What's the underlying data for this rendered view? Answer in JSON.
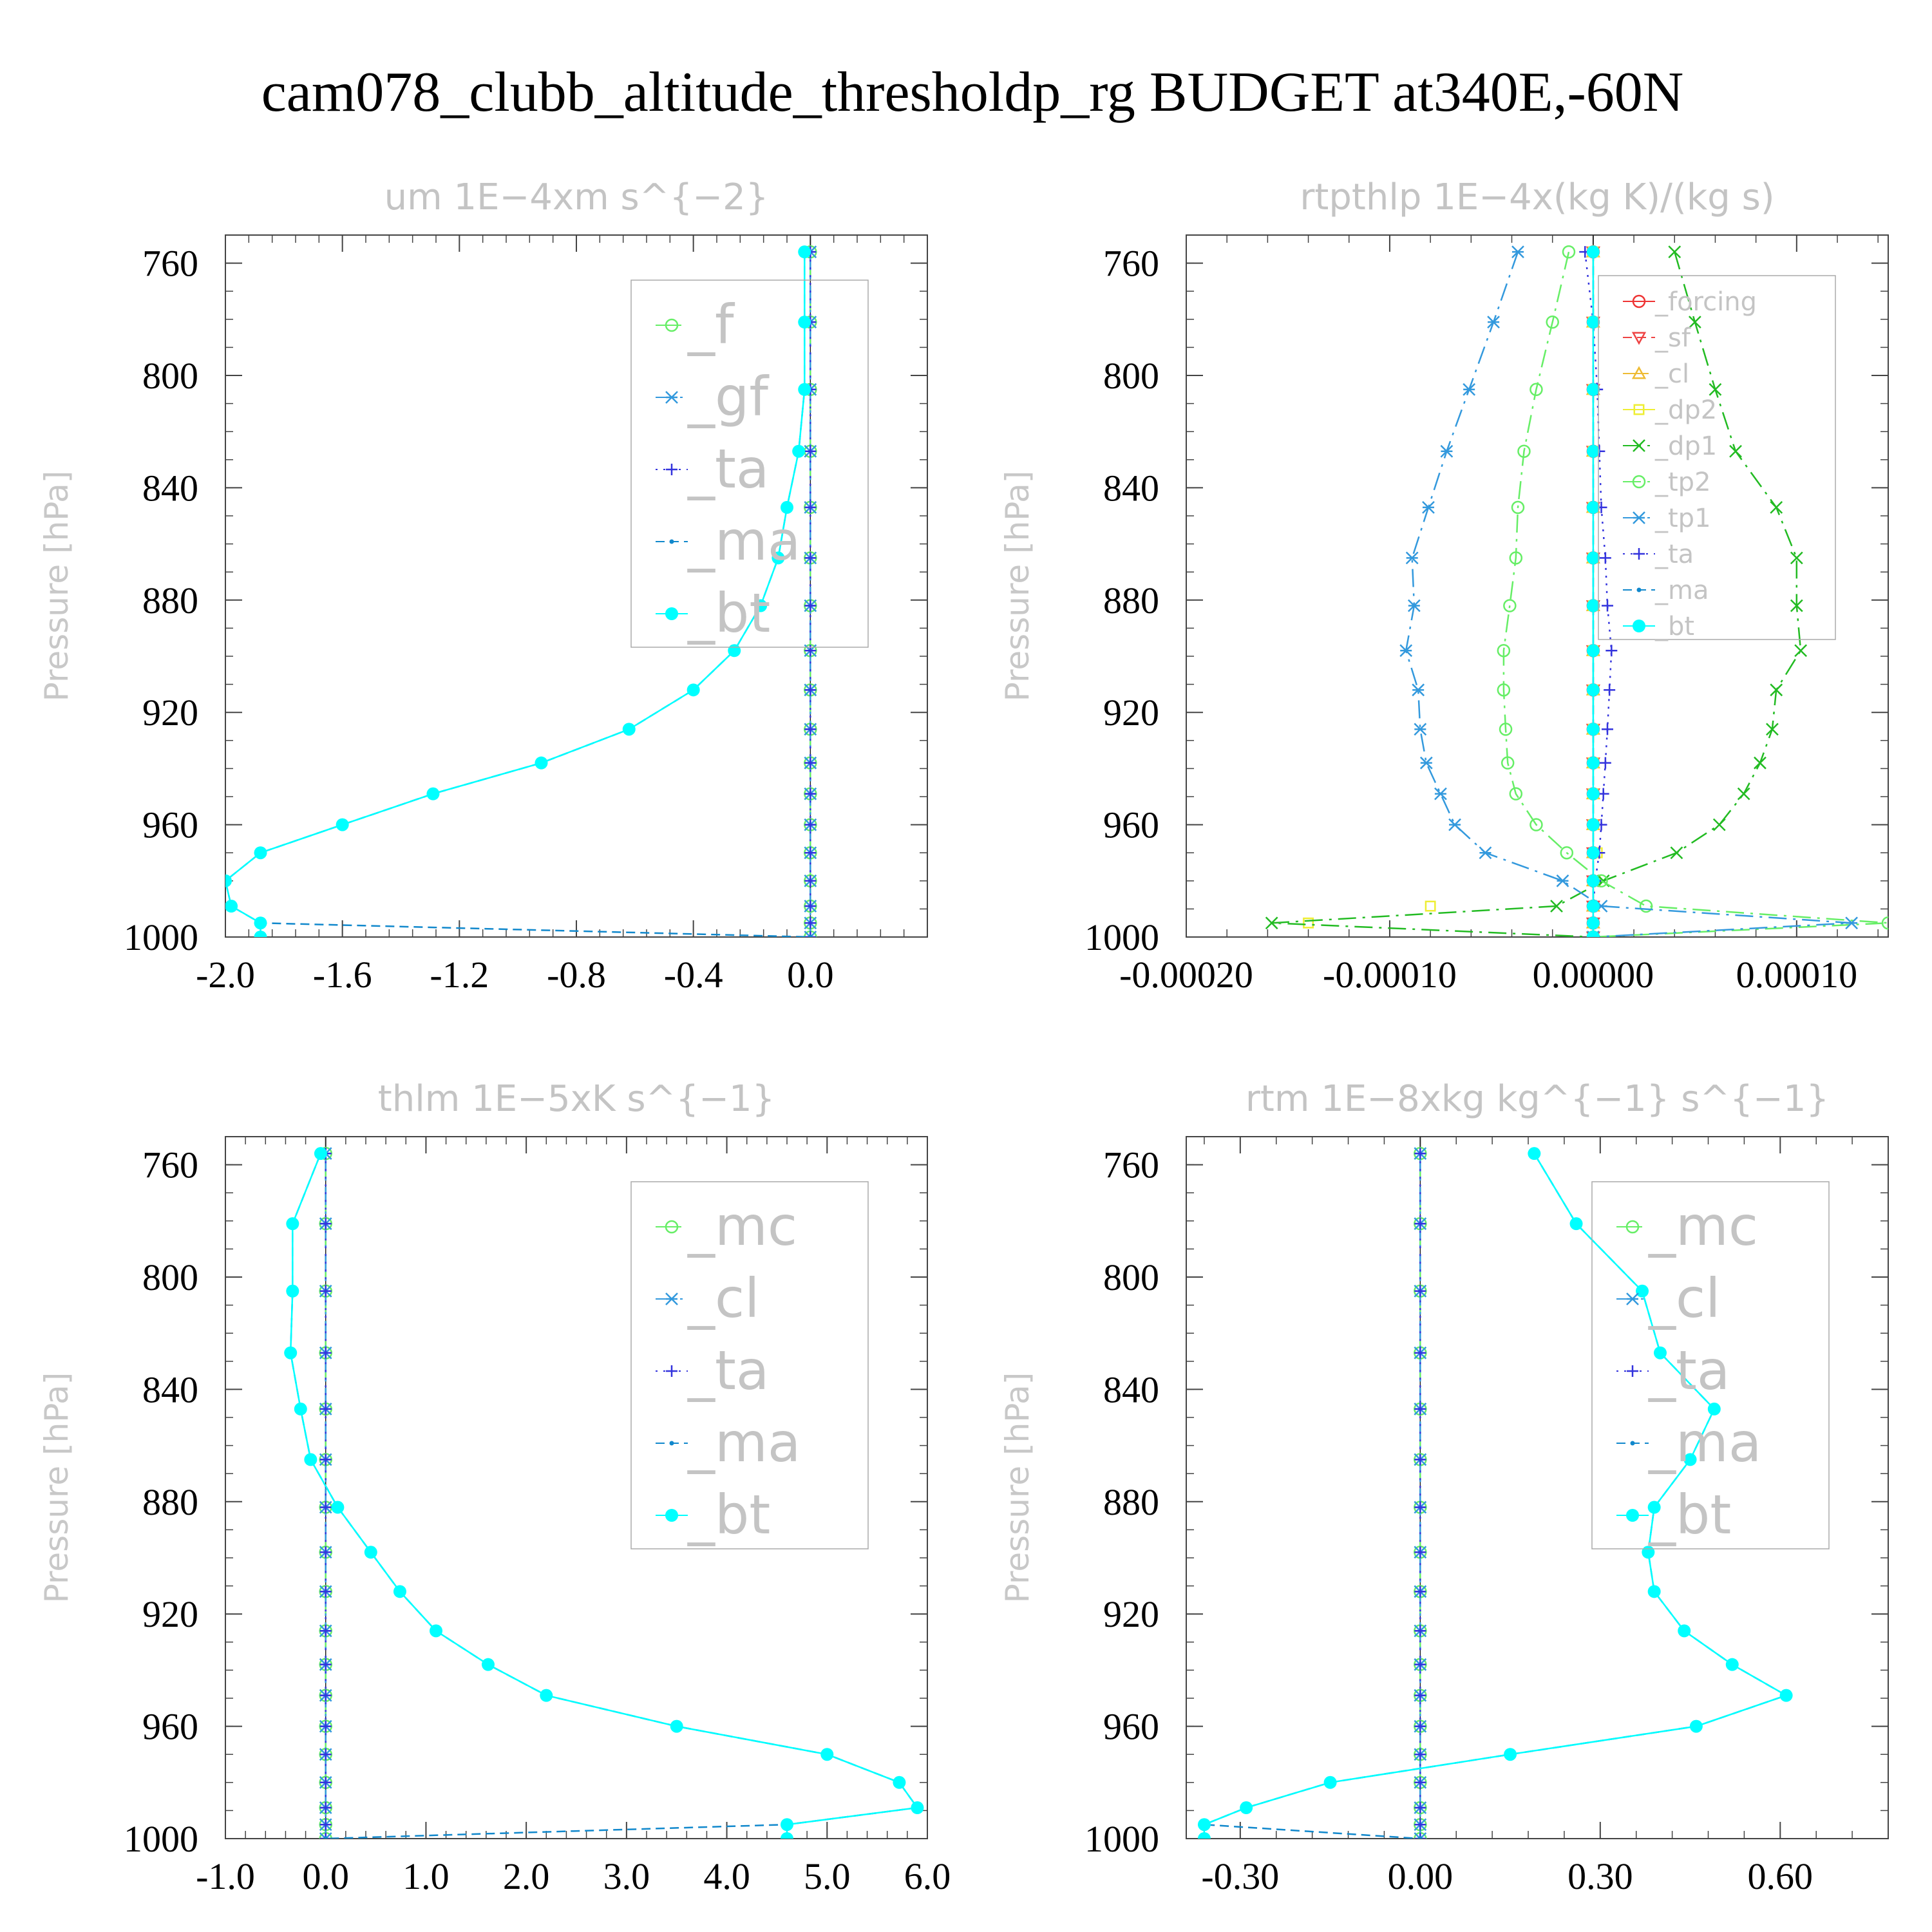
{
  "title": "cam078_clubb_altitude_thresholdp_rg  BUDGET at340E,-60N",
  "chart_data": [
    {
      "type": "line",
      "title": "um   1E−4xm s^{−2}",
      "ylabel": "Pressure [hPa]",
      "xlabel": "",
      "ylim": [
        1000,
        750
      ],
      "xlim": [
        -2.0,
        0.4
      ],
      "xticks": [
        -2.0,
        -1.6,
        -1.2,
        -0.8,
        -0.4,
        0.0
      ],
      "xtick_labels": [
        "-2.0",
        "-1.6",
        "-1.2",
        "-0.8",
        "-0.4",
        "0.0"
      ],
      "yticks": [
        760,
        800,
        840,
        880,
        920,
        960,
        1000
      ],
      "ytick_labels": [
        "760",
        "800",
        "840",
        "880",
        "920",
        "960",
        "1000"
      ],
      "legend_position": "top-right",
      "legend_size": "big",
      "levels": [
        756,
        781,
        805,
        827,
        847,
        865,
        882,
        898,
        912,
        926,
        938,
        949,
        960,
        970,
        980,
        989,
        995,
        1000
      ],
      "series": [
        {
          "name": "_f",
          "color": "#66ee66",
          "marker": "circle",
          "dash": "long",
          "values": [
            0,
            0,
            0,
            0,
            0,
            0,
            0,
            0,
            0,
            0,
            0,
            0,
            0,
            0,
            0,
            0,
            0,
            0
          ]
        },
        {
          "name": "_gf",
          "color": "#3399dd",
          "marker": "star",
          "dash": "dashdot",
          "values": [
            0,
            0,
            0,
            0,
            0,
            0,
            0,
            0,
            0,
            0,
            0,
            0,
            0,
            0,
            0,
            0,
            0,
            0
          ]
        },
        {
          "name": "_ta",
          "color": "#3333dd",
          "marker": "plus",
          "dash": "dot",
          "values": [
            0,
            0,
            0,
            0,
            0,
            0,
            0,
            0,
            0,
            0,
            0,
            0,
            0,
            0,
            0,
            0,
            0,
            1e-06
          ]
        },
        {
          "name": "_ma",
          "color": "#1188cc",
          "marker": "dot",
          "dash": "short",
          "values": [
            -0.02,
            -0.02,
            -0.02,
            -0.04,
            -0.08,
            -0.11,
            -0.17,
            -0.26,
            -0.4,
            -0.62,
            -0.92,
            -1.29,
            -1.6,
            -1.88,
            -2.0,
            -1.98,
            -1.88,
            0
          ]
        },
        {
          "name": "_bt",
          "color": "#00ffff",
          "marker": "bigdot",
          "dash": "none",
          "values": [
            -0.02,
            -0.02,
            -0.02,
            -0.04,
            -0.08,
            -0.11,
            -0.17,
            -0.26,
            -0.4,
            -0.62,
            -0.92,
            -1.29,
            -1.6,
            -1.88,
            -2.0,
            -1.98,
            -1.88,
            -1.88
          ]
        }
      ]
    },
    {
      "type": "line",
      "title": "rtpthlp   1E−4x(kg K)/(kg s)",
      "ylabel": "Pressure [hPa]",
      "xlabel": "",
      "ylim": [
        1000,
        750
      ],
      "xlim": [
        -0.0002,
        0.000145
      ],
      "xticks": [
        -0.0002,
        -0.0001,
        0.0,
        0.0001
      ],
      "xtick_labels": [
        "-0.00020",
        "-0.00010",
        "0.00000",
        "0.00010"
      ],
      "yticks": [
        760,
        800,
        840,
        880,
        920,
        960,
        1000
      ],
      "ytick_labels": [
        "760",
        "800",
        "840",
        "880",
        "920",
        "960",
        "1000"
      ],
      "legend_position": "top-right",
      "legend_size": "small",
      "levels": [
        756,
        781,
        805,
        827,
        847,
        865,
        882,
        898,
        912,
        926,
        938,
        949,
        960,
        970,
        980,
        989,
        995,
        1000
      ],
      "series": [
        {
          "name": "_forcing",
          "color": "#ee3333",
          "marker": "circle",
          "dash": "none",
          "values": [
            0,
            0,
            0,
            0,
            0,
            0,
            0,
            0,
            0,
            0,
            0,
            0,
            0,
            0,
            0,
            0,
            0,
            0
          ]
        },
        {
          "name": "_sf",
          "color": "#ee4444",
          "marker": "triangle-down",
          "dash": "short",
          "values": [
            0,
            0,
            0,
            0,
            0,
            0,
            0,
            0,
            0,
            0,
            0,
            0,
            0,
            0,
            0,
            0,
            0,
            0
          ]
        },
        {
          "name": "_cl",
          "color": "#eebb33",
          "marker": "triangle",
          "dash": "long",
          "values": [
            0,
            0,
            0,
            0,
            0,
            0,
            0,
            0,
            0,
            0,
            0,
            0,
            0,
            0,
            0,
            0,
            0,
            0
          ]
        },
        {
          "name": "_dp2",
          "color": "#eeee33",
          "marker": "square",
          "dash": "none",
          "values": [
            0,
            0,
            0,
            0,
            0,
            0,
            0,
            0,
            0,
            0,
            0,
            0,
            0,
            2e-06,
            1e-06,
            -8e-05,
            -0.00014,
            0
          ]
        },
        {
          "name": "_dp1",
          "color": "#22bb22",
          "marker": "x",
          "dash": "dashdot",
          "values": [
            4e-05,
            5e-05,
            6e-05,
            7e-05,
            9e-05,
            0.0001,
            0.0001,
            0.000102,
            9e-05,
            8.8e-05,
            8.2e-05,
            7.4e-05,
            6.2e-05,
            4.1e-05,
            5e-06,
            -1.8e-05,
            -0.000158,
            0
          ]
        },
        {
          "name": "_tp2",
          "color": "#66ee66",
          "marker": "circle",
          "dash": "dashdot",
          "values": [
            -1.2e-05,
            -2e-05,
            -2.8e-05,
            -3.4e-05,
            -3.7e-05,
            -3.8e-05,
            -4.1e-05,
            -4.4e-05,
            -4.4e-05,
            -4.3e-05,
            -4.2e-05,
            -3.8e-05,
            -2.8e-05,
            -1.3e-05,
            4e-06,
            2.6e-05,
            0.000145,
            0
          ]
        },
        {
          "name": "_tp1",
          "color": "#3399dd",
          "marker": "star",
          "dash": "dashdot",
          "values": [
            -3.7e-05,
            -4.9e-05,
            -6.1e-05,
            -7.2e-05,
            -8.1e-05,
            -8.9e-05,
            -8.8e-05,
            -9.2e-05,
            -8.6e-05,
            -8.5e-05,
            -8.2e-05,
            -7.5e-05,
            -6.8e-05,
            -5.3e-05,
            -1.5e-05,
            4e-06,
            0.000127,
            0
          ]
        },
        {
          "name": "_ta",
          "color": "#3333dd",
          "marker": "plus",
          "dash": "dot",
          "values": [
            -4e-06,
            0,
            2e-06,
            3e-06,
            4e-06,
            6e-06,
            7e-06,
            9e-06,
            8e-06,
            7e-06,
            6e-06,
            5e-06,
            4e-06,
            3e-06,
            1e-06,
            0,
            0,
            0
          ]
        },
        {
          "name": "_ma",
          "color": "#1188cc",
          "marker": "dot",
          "dash": "short",
          "values": [
            0,
            0,
            0,
            0,
            0,
            0,
            0,
            0,
            0,
            0,
            0,
            0,
            0,
            0,
            0,
            0,
            0,
            0
          ]
        },
        {
          "name": "_bt",
          "color": "#00ffff",
          "marker": "bigdot",
          "dash": "none",
          "values": [
            0,
            0,
            0,
            0,
            0,
            0,
            0,
            0,
            0,
            0,
            0,
            0,
            0,
            0,
            0,
            0,
            0,
            0
          ]
        }
      ]
    },
    {
      "type": "line",
      "title": "thlm   1E−5xK s^{−1}",
      "ylabel": "Pressure [hPa]",
      "xlabel": "",
      "ylim": [
        1000,
        750
      ],
      "xlim": [
        -1.0,
        6.0
      ],
      "xticks": [
        -1.0,
        0.0,
        1.0,
        2.0,
        3.0,
        4.0,
        5.0,
        6.0
      ],
      "xtick_labels": [
        "-1.0",
        "0.0",
        "1.0",
        "2.0",
        "3.0",
        "4.0",
        "5.0",
        "6.0"
      ],
      "yticks": [
        760,
        800,
        840,
        880,
        920,
        960,
        1000
      ],
      "ytick_labels": [
        "760",
        "800",
        "840",
        "880",
        "920",
        "960",
        "1000"
      ],
      "legend_position": "top-right",
      "legend_size": "big",
      "levels": [
        756,
        781,
        805,
        827,
        847,
        865,
        882,
        898,
        912,
        926,
        938,
        949,
        960,
        970,
        980,
        989,
        995,
        1000
      ],
      "series": [
        {
          "name": "_mc",
          "color": "#66ee66",
          "marker": "circle",
          "dash": "long",
          "values": [
            0,
            0,
            0,
            0,
            0,
            0,
            0,
            0,
            0,
            0,
            0,
            0,
            0,
            0,
            0,
            0,
            0,
            0
          ]
        },
        {
          "name": "_cl",
          "color": "#3399dd",
          "marker": "star",
          "dash": "dashdot",
          "values": [
            0,
            0,
            0,
            0,
            0,
            0,
            0,
            0,
            0,
            0,
            0,
            0,
            0,
            0,
            0,
            0,
            0,
            0
          ]
        },
        {
          "name": "_ta",
          "color": "#3333dd",
          "marker": "plus",
          "dash": "dot",
          "values": [
            0,
            0,
            0,
            0,
            0,
            0,
            0,
            0,
            0,
            0,
            0,
            0,
            0,
            0,
            0,
            0,
            0,
            1e-06
          ]
        },
        {
          "name": "_ma",
          "color": "#1188cc",
          "marker": "dot",
          "dash": "short",
          "values": [
            -0.05,
            -0.33,
            -0.33,
            -0.35,
            -0.25,
            -0.15,
            0.12,
            0.45,
            0.74,
            1.1,
            1.62,
            2.2,
            3.5,
            5.0,
            5.72,
            5.9,
            4.6,
            0
          ]
        },
        {
          "name": "_bt",
          "color": "#00ffff",
          "marker": "bigdot",
          "dash": "none",
          "values": [
            -0.05,
            -0.33,
            -0.33,
            -0.35,
            -0.25,
            -0.15,
            0.12,
            0.45,
            0.74,
            1.1,
            1.62,
            2.2,
            3.5,
            5.0,
            5.72,
            5.9,
            4.6,
            4.6
          ]
        }
      ]
    },
    {
      "type": "line",
      "title": "rtm   1E−8xkg kg^{−1} s^{−1}",
      "ylabel": "Pressure [hPa]",
      "xlabel": "",
      "ylim": [
        1000,
        750
      ],
      "xlim": [
        -0.39,
        0.78
      ],
      "xticks": [
        -0.3,
        0.0,
        0.3,
        0.6
      ],
      "xtick_labels": [
        "-0.30",
        "0.00",
        "0.30",
        "0.60"
      ],
      "yticks": [
        760,
        800,
        840,
        880,
        920,
        960,
        1000
      ],
      "ytick_labels": [
        "760",
        "800",
        "840",
        "880",
        "920",
        "960",
        "1000"
      ],
      "legend_position": "top-right",
      "legend_size": "big",
      "levels": [
        756,
        781,
        805,
        827,
        847,
        865,
        882,
        898,
        912,
        926,
        938,
        949,
        960,
        970,
        980,
        989,
        995,
        1000
      ],
      "series": [
        {
          "name": "_mc",
          "color": "#66ee66",
          "marker": "circle",
          "dash": "long",
          "values": [
            0,
            0,
            0,
            0,
            0,
            0,
            0,
            0,
            0,
            0,
            0,
            0,
            0,
            0,
            0,
            0,
            0,
            0
          ]
        },
        {
          "name": "_cl",
          "color": "#3399dd",
          "marker": "star",
          "dash": "dashdot",
          "values": [
            0,
            0,
            0,
            0,
            0,
            0,
            0,
            0,
            0,
            0,
            0,
            0,
            0,
            0,
            0,
            0,
            0,
            0
          ]
        },
        {
          "name": "_ta",
          "color": "#3333dd",
          "marker": "plus",
          "dash": "dot",
          "values": [
            0,
            0,
            0,
            0,
            0,
            0,
            0,
            0,
            0,
            0,
            0,
            0,
            0,
            0,
            0,
            0,
            0,
            1e-06
          ]
        },
        {
          "name": "_ma",
          "color": "#1188cc",
          "marker": "dot",
          "dash": "short",
          "values": [
            0.19,
            0.26,
            0.37,
            0.4,
            0.49,
            0.45,
            0.39,
            0.38,
            0.39,
            0.44,
            0.52,
            0.61,
            0.46,
            0.15,
            -0.15,
            -0.29,
            -0.36,
            0
          ]
        },
        {
          "name": "_bt",
          "color": "#00ffff",
          "marker": "bigdot",
          "dash": "none",
          "values": [
            0.19,
            0.26,
            0.37,
            0.4,
            0.49,
            0.45,
            0.39,
            0.38,
            0.39,
            0.44,
            0.52,
            0.61,
            0.46,
            0.15,
            -0.15,
            -0.29,
            -0.36,
            -0.36
          ]
        }
      ]
    }
  ]
}
